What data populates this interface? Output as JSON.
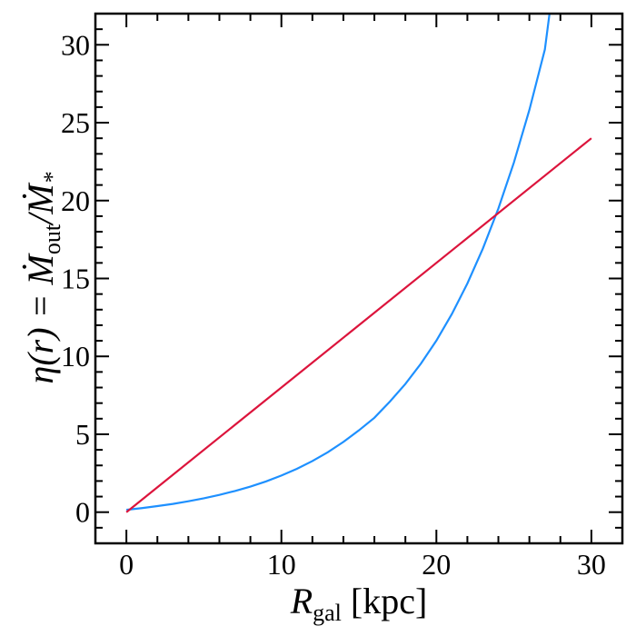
{
  "chart_data": {
    "type": "line",
    "xlabel": [
      "R",
      "gal",
      " [kpc]"
    ],
    "ylabel": [
      "η(r) = Ṁ",
      "out",
      "/Ṁ",
      "*"
    ],
    "xlim": [
      -2,
      32
    ],
    "ylim": [
      -2,
      32
    ],
    "xticks": [
      0,
      10,
      20,
      30
    ],
    "yticks": [
      0,
      5,
      10,
      15,
      20,
      25,
      30
    ],
    "xminorticks": [
      -2,
      2,
      4,
      6,
      8,
      12,
      14,
      16,
      18,
      22,
      24,
      26,
      28,
      32
    ],
    "yminorticks": [
      -2,
      -1,
      1,
      2,
      3,
      4,
      6,
      7,
      8,
      9,
      11,
      12,
      13,
      14,
      16,
      17,
      18,
      19,
      21,
      22,
      23,
      24,
      26,
      27,
      28,
      29,
      31,
      32
    ],
    "grid": false,
    "series": [
      {
        "color": "#1e90ff",
        "x": [
          0,
          1,
          2,
          3,
          4,
          5,
          6,
          7,
          8,
          9,
          10,
          11,
          12,
          13,
          14,
          15,
          16,
          17,
          18,
          19,
          20,
          21,
          22,
          23,
          24,
          25,
          26,
          27,
          27.3
        ],
        "values": [
          0.15,
          0.26,
          0.39,
          0.53,
          0.7,
          0.89,
          1.11,
          1.36,
          1.64,
          1.97,
          2.35,
          2.78,
          3.28,
          3.85,
          4.51,
          5.25,
          6.06,
          7.1,
          8.23,
          9.53,
          11.01,
          12.72,
          14.68,
          16.92,
          19.49,
          22.44,
          25.82,
          29.7,
          32
        ]
      },
      {
        "color": "#dc143c",
        "x": [
          0,
          30
        ],
        "values": [
          0,
          24
        ]
      }
    ]
  }
}
